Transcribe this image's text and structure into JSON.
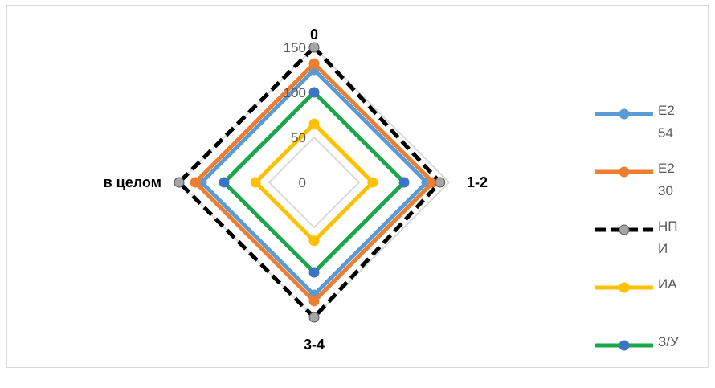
{
  "chart_data": {
    "type": "radar",
    "categories": [
      "0",
      "1-2",
      "3-4",
      "в целом"
    ],
    "r_ticks": [
      0,
      50,
      100,
      150
    ],
    "rlim": [
      0,
      150
    ],
    "grid": true,
    "legend_position": "right",
    "series": [
      {
        "name": "Е2 54",
        "values": [
          125,
          125,
          125,
          125
        ],
        "color": "#5b9bd5",
        "dash": false,
        "marker_fill": "#5b9bd5"
      },
      {
        "name": "Е2 30",
        "values": [
          132,
          132,
          132,
          132
        ],
        "color": "#ed7d31",
        "dash": false,
        "marker_fill": "#ed7d31"
      },
      {
        "name": "НПИ",
        "values": [
          150,
          140,
          150,
          150
        ],
        "color": "#000000",
        "dash": true,
        "marker_fill": "#a5a5a5"
      },
      {
        "name": "ИА",
        "values": [
          65,
          65,
          65,
          65
        ],
        "color": "#ffc000",
        "dash": false,
        "marker_fill": "#ffc000"
      },
      {
        "name": "З/У",
        "values": [
          100,
          100,
          100,
          100
        ],
        "color": "#1aa64a",
        "dash": false,
        "marker_fill": "#3b74c4"
      }
    ]
  }
}
